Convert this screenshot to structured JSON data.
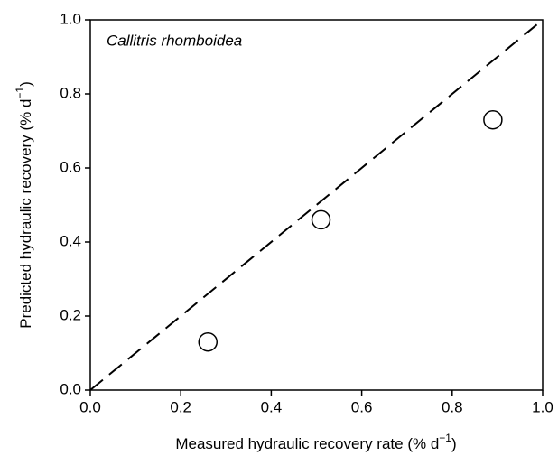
{
  "chart_data": {
    "type": "scatter",
    "annotation": "Callitris rhomboidea",
    "xlabel": {
      "text": "Measured hydraulic recovery rate (% d",
      "superscript": "−1",
      "close": ")"
    },
    "ylabel": {
      "text": "Predicted hydraulic recovery (% d",
      "superscript": "−1",
      "close": ")"
    },
    "x": [
      0.26,
      0.51,
      0.89
    ],
    "values": [
      0.13,
      0.46,
      0.73
    ],
    "marker": "open-circle",
    "color": "#000000",
    "reference_line": {
      "x": [
        0,
        1
      ],
      "y": [
        0,
        1
      ],
      "style": "dashed"
    },
    "xlim": [
      0,
      1
    ],
    "ylim": [
      0,
      1
    ],
    "xticks": [
      {
        "value": 0,
        "label": "0.0"
      },
      0.2,
      0.4,
      0.6,
      0.8,
      {
        "value": 1,
        "label": "1.0"
      }
    ],
    "yticks": [
      {
        "value": 0,
        "label": "0.0"
      },
      0.2,
      0.4,
      0.6,
      0.8,
      {
        "value": 1,
        "label": "1.0"
      }
    ],
    "grid": false
  }
}
